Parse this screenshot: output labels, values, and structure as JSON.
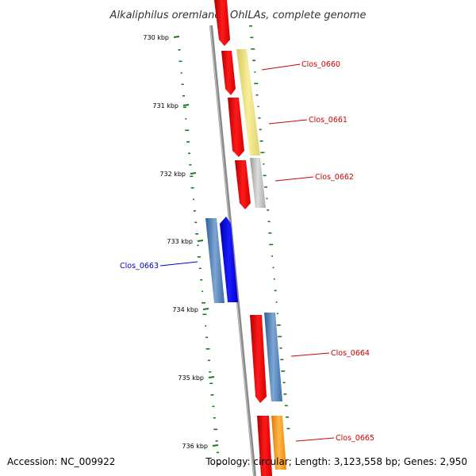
{
  "title": "Alkaliphilus oremlandii OhILAs, complete genome",
  "accession": "Accession: NC_009922",
  "summary": "Topology: circular; Length: 3,123,558 bp; Genes: 2,950",
  "ticks": [
    "730 kbp",
    "731 kbp",
    "732 kbp",
    "733 kbp",
    "734 kbp",
    "735 kbp",
    "736 kbp"
  ],
  "gene_labels": [
    "Clos_0660",
    "Clos_0661",
    "Clos_0662",
    "Clos_0663",
    "Clos_0664",
    "Clos_0665"
  ],
  "colors": {
    "forward_cds": "#ff0000",
    "reverse_cds": "#0000ff",
    "backbone": "#8c8c8c",
    "gc_dots": "#1a7a1a",
    "label_forward": "#cc0000",
    "label_reverse": "#0000cc",
    "feature_yellow": "#f2e48a",
    "feature_grey": "#bdbdbd",
    "feature_steelblue": "#4d7fb8",
    "feature_orange": "#ff9a1a"
  }
}
